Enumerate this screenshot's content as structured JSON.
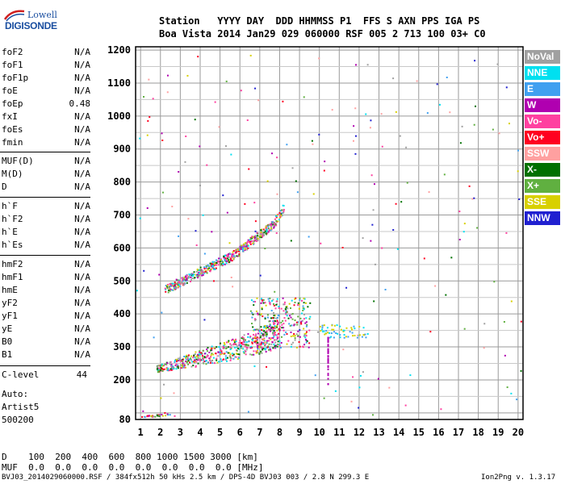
{
  "logo": {
    "line1": "Lowell",
    "line2": "DIGISONDE"
  },
  "header": {
    "row1": "Station   YYYY DAY  DDD HHMMSS P1  FFS S AXN PPS IGA PS",
    "row2": "Boa Vista 2014 Jan29 029 060000 RSF 005 2 713 100 03+ C0"
  },
  "params_group1": [
    {
      "name": "foF2",
      "value": "N/A"
    },
    {
      "name": "foF1",
      "value": "N/A"
    },
    {
      "name": "foF1p",
      "value": "N/A"
    },
    {
      "name": "foE",
      "value": "N/A"
    },
    {
      "name": "foEp",
      "value": "0.48"
    },
    {
      "name": "fxI",
      "value": "N/A"
    },
    {
      "name": "foEs",
      "value": "N/A"
    },
    {
      "name": "fmin",
      "value": "N/A"
    }
  ],
  "params_group2": [
    {
      "name": "MUF(D)",
      "value": "N/A"
    },
    {
      "name": "M(D)",
      "value": "N/A"
    },
    {
      "name": "D",
      "value": "N/A"
    }
  ],
  "params_group3": [
    {
      "name": "h`F",
      "value": "N/A"
    },
    {
      "name": "h`F2",
      "value": "N/A"
    },
    {
      "name": "h`E",
      "value": "N/A"
    },
    {
      "name": "h`Es",
      "value": "N/A"
    }
  ],
  "params_group4": [
    {
      "name": "hmF2",
      "value": "N/A"
    },
    {
      "name": "hmF1",
      "value": "N/A"
    },
    {
      "name": "hmE",
      "value": "N/A"
    },
    {
      "name": "yF2",
      "value": "N/A"
    },
    {
      "name": "yF1",
      "value": "N/A"
    },
    {
      "name": "yE",
      "value": "N/A"
    },
    {
      "name": "B0",
      "value": "N/A"
    },
    {
      "name": "B1",
      "value": "N/A"
    }
  ],
  "clevel": {
    "name": "C-level",
    "value": "44"
  },
  "auto": {
    "line1": "Auto:",
    "line2": "Artist5",
    "line3": "500200"
  },
  "legend": [
    {
      "label": "NoVal",
      "color": "#a0a0a0"
    },
    {
      "label": "NNE",
      "color": "#00e0f0"
    },
    {
      "label": "E",
      "color": "#40a0f0"
    },
    {
      "label": "W",
      "color": "#b000b0"
    },
    {
      "label": "Vo-",
      "color": "#ff40a0"
    },
    {
      "label": "Vo+",
      "color": "#ff0020"
    },
    {
      "label": "SSW",
      "color": "#ffa0a0"
    },
    {
      "label": "X-",
      "color": "#007000"
    },
    {
      "label": "X+",
      "color": "#60b040"
    },
    {
      "label": "SSE",
      "color": "#d8d000"
    },
    {
      "label": "NNW",
      "color": "#2020d0"
    }
  ],
  "bottom": {
    "row1": "D    100  200  400  600  800 1000 1500 3000 [km]",
    "row2": "MUF  0.0  0.0  0.0  0.0  0.0  0.0  0.0  0.0 [MHz]"
  },
  "footer": {
    "left": "BVJ03_2014029060000.RSF / 384fx512h 50 kHs 2.5 km / DPS-4D BVJ03 003 / 2.8 N 299.3 E",
    "right": "Ion2Png v. 1.3.17"
  },
  "chart_data": {
    "type": "scatter",
    "title": "",
    "xlabel": "",
    "ylabel": "",
    "x_ticks": [
      1,
      2,
      3,
      4,
      5,
      6,
      7,
      8,
      9,
      10,
      11,
      12,
      13,
      14,
      15,
      16,
      17,
      18,
      19,
      20
    ],
    "y_ticks": [
      80,
      100,
      200,
      300,
      400,
      500,
      600,
      700,
      800,
      900,
      1000,
      1100,
      1200
    ],
    "y_tick_labels": [
      "80",
      "",
      "200",
      "300",
      "400",
      "500",
      "600",
      "700",
      "800",
      "900",
      "1000",
      "1100",
      "1200"
    ],
    "xlim": [
      0.75,
      20.25
    ],
    "ylim": [
      80,
      1210
    ],
    "grid": true,
    "series": [
      {
        "trace": "F-layer lower",
        "points": [
          [
            1.8,
            235
          ],
          [
            2.5,
            245
          ],
          [
            3,
            255
          ],
          [
            3.5,
            262
          ],
          [
            4,
            270
          ],
          [
            4.5,
            278
          ],
          [
            5,
            285
          ],
          [
            5.5,
            293
          ],
          [
            6,
            300
          ],
          [
            6.5,
            310
          ],
          [
            7,
            320
          ],
          [
            7.5,
            335
          ],
          [
            8,
            350
          ]
        ]
      },
      {
        "trace": "F-layer upper",
        "points": [
          [
            2.2,
            475
          ],
          [
            3,
            500
          ],
          [
            3.5,
            515
          ],
          [
            4,
            530
          ],
          [
            4.5,
            545
          ],
          [
            5,
            560
          ],
          [
            5.5,
            575
          ],
          [
            6,
            595
          ],
          [
            6.5,
            620
          ],
          [
            7,
            645
          ],
          [
            7.5,
            665
          ],
          [
            8,
            700
          ],
          [
            8.2,
            730
          ]
        ]
      },
      {
        "trace": "low",
        "points": [
          [
            1,
            90
          ],
          [
            1.5,
            92
          ],
          [
            2,
            95
          ],
          [
            2.5,
            100
          ]
        ]
      }
    ]
  }
}
